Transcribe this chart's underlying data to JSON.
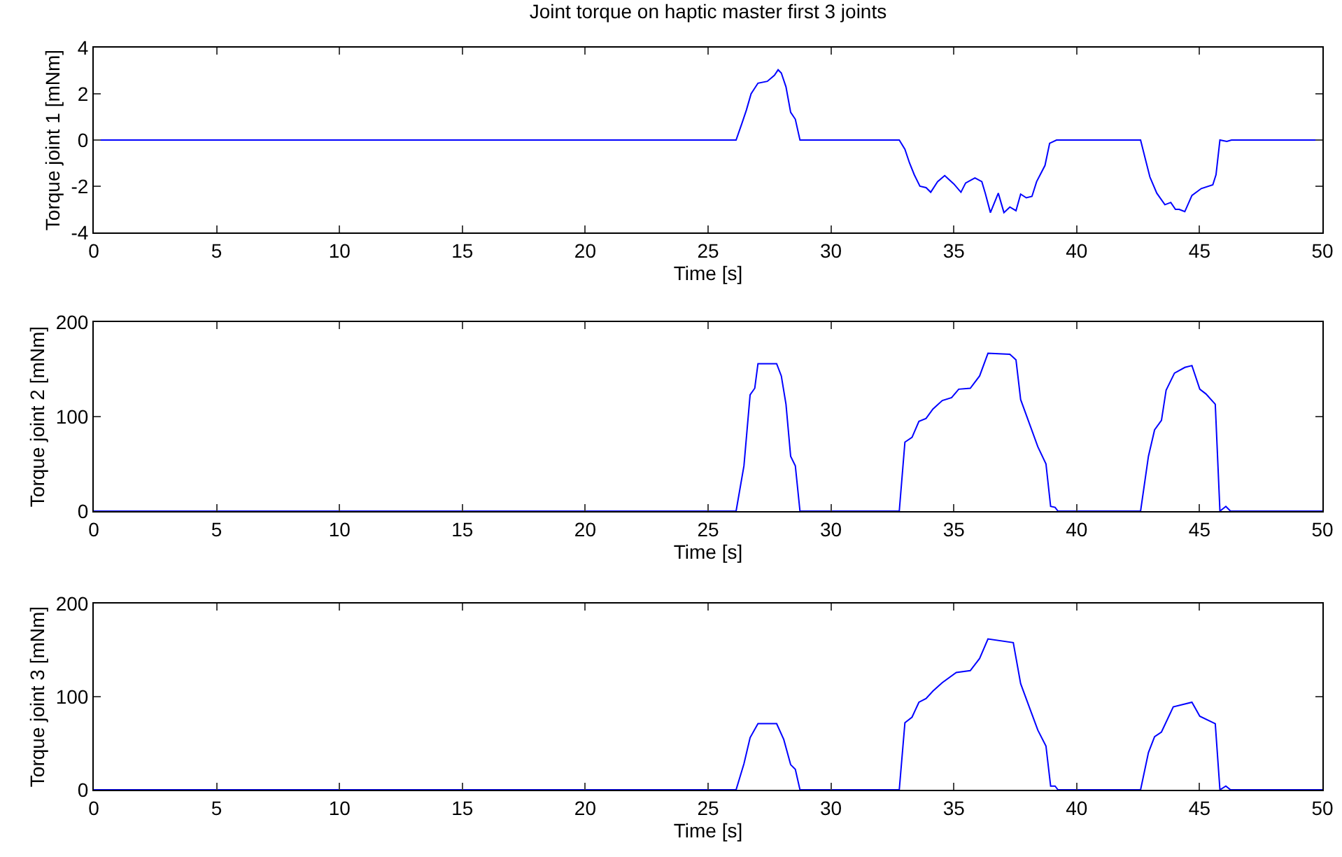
{
  "chart_data": [
    {
      "type": "line",
      "title": "Joint torque on haptic master first 3 joints",
      "xlabel": "Time [s]",
      "ylabel": "Torque joint 1 [mNm]",
      "xlim": [
        0,
        50
      ],
      "xticks": [
        0,
        5,
        10,
        15,
        20,
        25,
        30,
        35,
        40,
        45,
        50
      ],
      "ylim": [
        -4,
        4
      ],
      "yticks": [
        -4,
        -2,
        0,
        2,
        4
      ],
      "grid": false,
      "marker": "none",
      "line_style": "solid",
      "series": [
        {
          "color": "#0000ff",
          "x": [
            0,
            26.14,
            26.37,
            26.56,
            26.75,
            27.03,
            27.41,
            27.7,
            27.85,
            27.98,
            28.17,
            28.36,
            28.55,
            28.74,
            32.78,
            33.01,
            33.2,
            33.39,
            33.62,
            33.87,
            34.06,
            34.34,
            34.63,
            35.0,
            35.29,
            35.48,
            35.86,
            36.14,
            36.28,
            36.49,
            36.81,
            37.04,
            37.28,
            37.53,
            37.72,
            37.95,
            38.18,
            38.37,
            38.71,
            38.9,
            39.18,
            42.6,
            42.79,
            42.98,
            43.26,
            43.59,
            43.83,
            44.02,
            44.17,
            44.4,
            44.69,
            45.07,
            45.54,
            45.67,
            45.83,
            46.11,
            46.3,
            50
          ],
          "values": [
            0,
            0,
            0.7,
            1.3,
            2.0,
            2.46,
            2.54,
            2.8,
            3.04,
            2.9,
            2.3,
            1.2,
            0.9,
            0,
            0,
            -0.4,
            -1.0,
            -1.5,
            -2.0,
            -2.06,
            -2.26,
            -1.8,
            -1.54,
            -1.9,
            -2.26,
            -1.86,
            -1.64,
            -1.8,
            -2.3,
            -3.14,
            -2.3,
            -3.14,
            -2.9,
            -3.06,
            -2.34,
            -2.5,
            -2.44,
            -1.8,
            -1.1,
            -0.14,
            0,
            0,
            -0.8,
            -1.6,
            -2.3,
            -2.8,
            -2.7,
            -3.0,
            -3.0,
            -3.1,
            -2.4,
            -2.1,
            -1.94,
            -1.5,
            0,
            -0.06,
            0,
            0
          ]
        }
      ]
    },
    {
      "type": "line",
      "xlabel": "Time [s]",
      "ylabel": "Torque joint 2 [mNm]",
      "xlim": [
        0,
        50
      ],
      "xticks": [
        0,
        5,
        10,
        15,
        20,
        25,
        30,
        35,
        40,
        45,
        50
      ],
      "ylim": [
        0,
        200
      ],
      "yticks": [
        0,
        100,
        200
      ],
      "grid": false,
      "marker": "none",
      "line_style": "solid",
      "series": [
        {
          "color": "#0000ff",
          "x": [
            0,
            26.14,
            26.46,
            26.71,
            26.9,
            27.03,
            27.79,
            27.98,
            28.17,
            28.36,
            28.55,
            28.74,
            32.78,
            33.01,
            33.3,
            33.58,
            33.87,
            34.15,
            34.53,
            34.91,
            35.2,
            35.67,
            36.05,
            36.39,
            37.28,
            37.53,
            37.72,
            38.14,
            38.42,
            38.75,
            38.94,
            39.12,
            39.24,
            42.6,
            42.92,
            43.17,
            43.45,
            43.64,
            43.98,
            44.4,
            44.69,
            45.01,
            45.26,
            45.64,
            45.83,
            46.07,
            46.26,
            50
          ],
          "values": [
            0,
            0,
            48,
            123,
            130,
            156,
            156,
            143,
            113,
            58,
            48,
            0,
            0,
            73,
            78,
            95,
            98,
            108,
            117,
            120,
            129,
            130,
            143,
            167,
            166,
            160,
            118,
            88,
            68,
            50,
            5,
            4,
            0,
            0,
            58,
            86,
            96,
            128,
            146,
            152,
            154,
            129,
            124,
            113,
            0,
            5,
            0,
            0
          ]
        }
      ]
    },
    {
      "type": "line",
      "xlabel": "Time [s]",
      "ylabel": "Torque joint 3 [mNm]",
      "xlim": [
        0,
        50
      ],
      "xticks": [
        0,
        5,
        10,
        15,
        20,
        25,
        30,
        35,
        40,
        45,
        50
      ],
      "ylim": [
        0,
        200
      ],
      "yticks": [
        0,
        100,
        200
      ],
      "grid": false,
      "marker": "none",
      "line_style": "solid",
      "series": [
        {
          "color": "#0000ff",
          "x": [
            0,
            26.14,
            26.46,
            26.71,
            27.03,
            27.79,
            28.08,
            28.36,
            28.55,
            28.74,
            32.78,
            33.01,
            33.3,
            33.58,
            33.87,
            34.15,
            34.53,
            35.1,
            35.67,
            36.05,
            36.39,
            37.42,
            37.72,
            38.14,
            38.42,
            38.75,
            38.94,
            39.12,
            39.24,
            42.6,
            42.92,
            43.17,
            43.45,
            43.93,
            44.69,
            45.01,
            45.64,
            45.83,
            46.07,
            46.26,
            50
          ],
          "values": [
            0,
            0,
            28,
            56,
            71,
            71,
            54,
            27,
            22,
            0,
            0,
            72,
            78,
            94,
            98,
            106,
            115,
            126,
            128,
            141,
            162,
            158,
            114,
            84,
            64,
            47,
            4,
            4,
            0,
            0,
            40,
            57,
            62,
            89,
            94,
            79,
            71,
            0,
            4,
            0,
            0
          ]
        }
      ]
    }
  ]
}
